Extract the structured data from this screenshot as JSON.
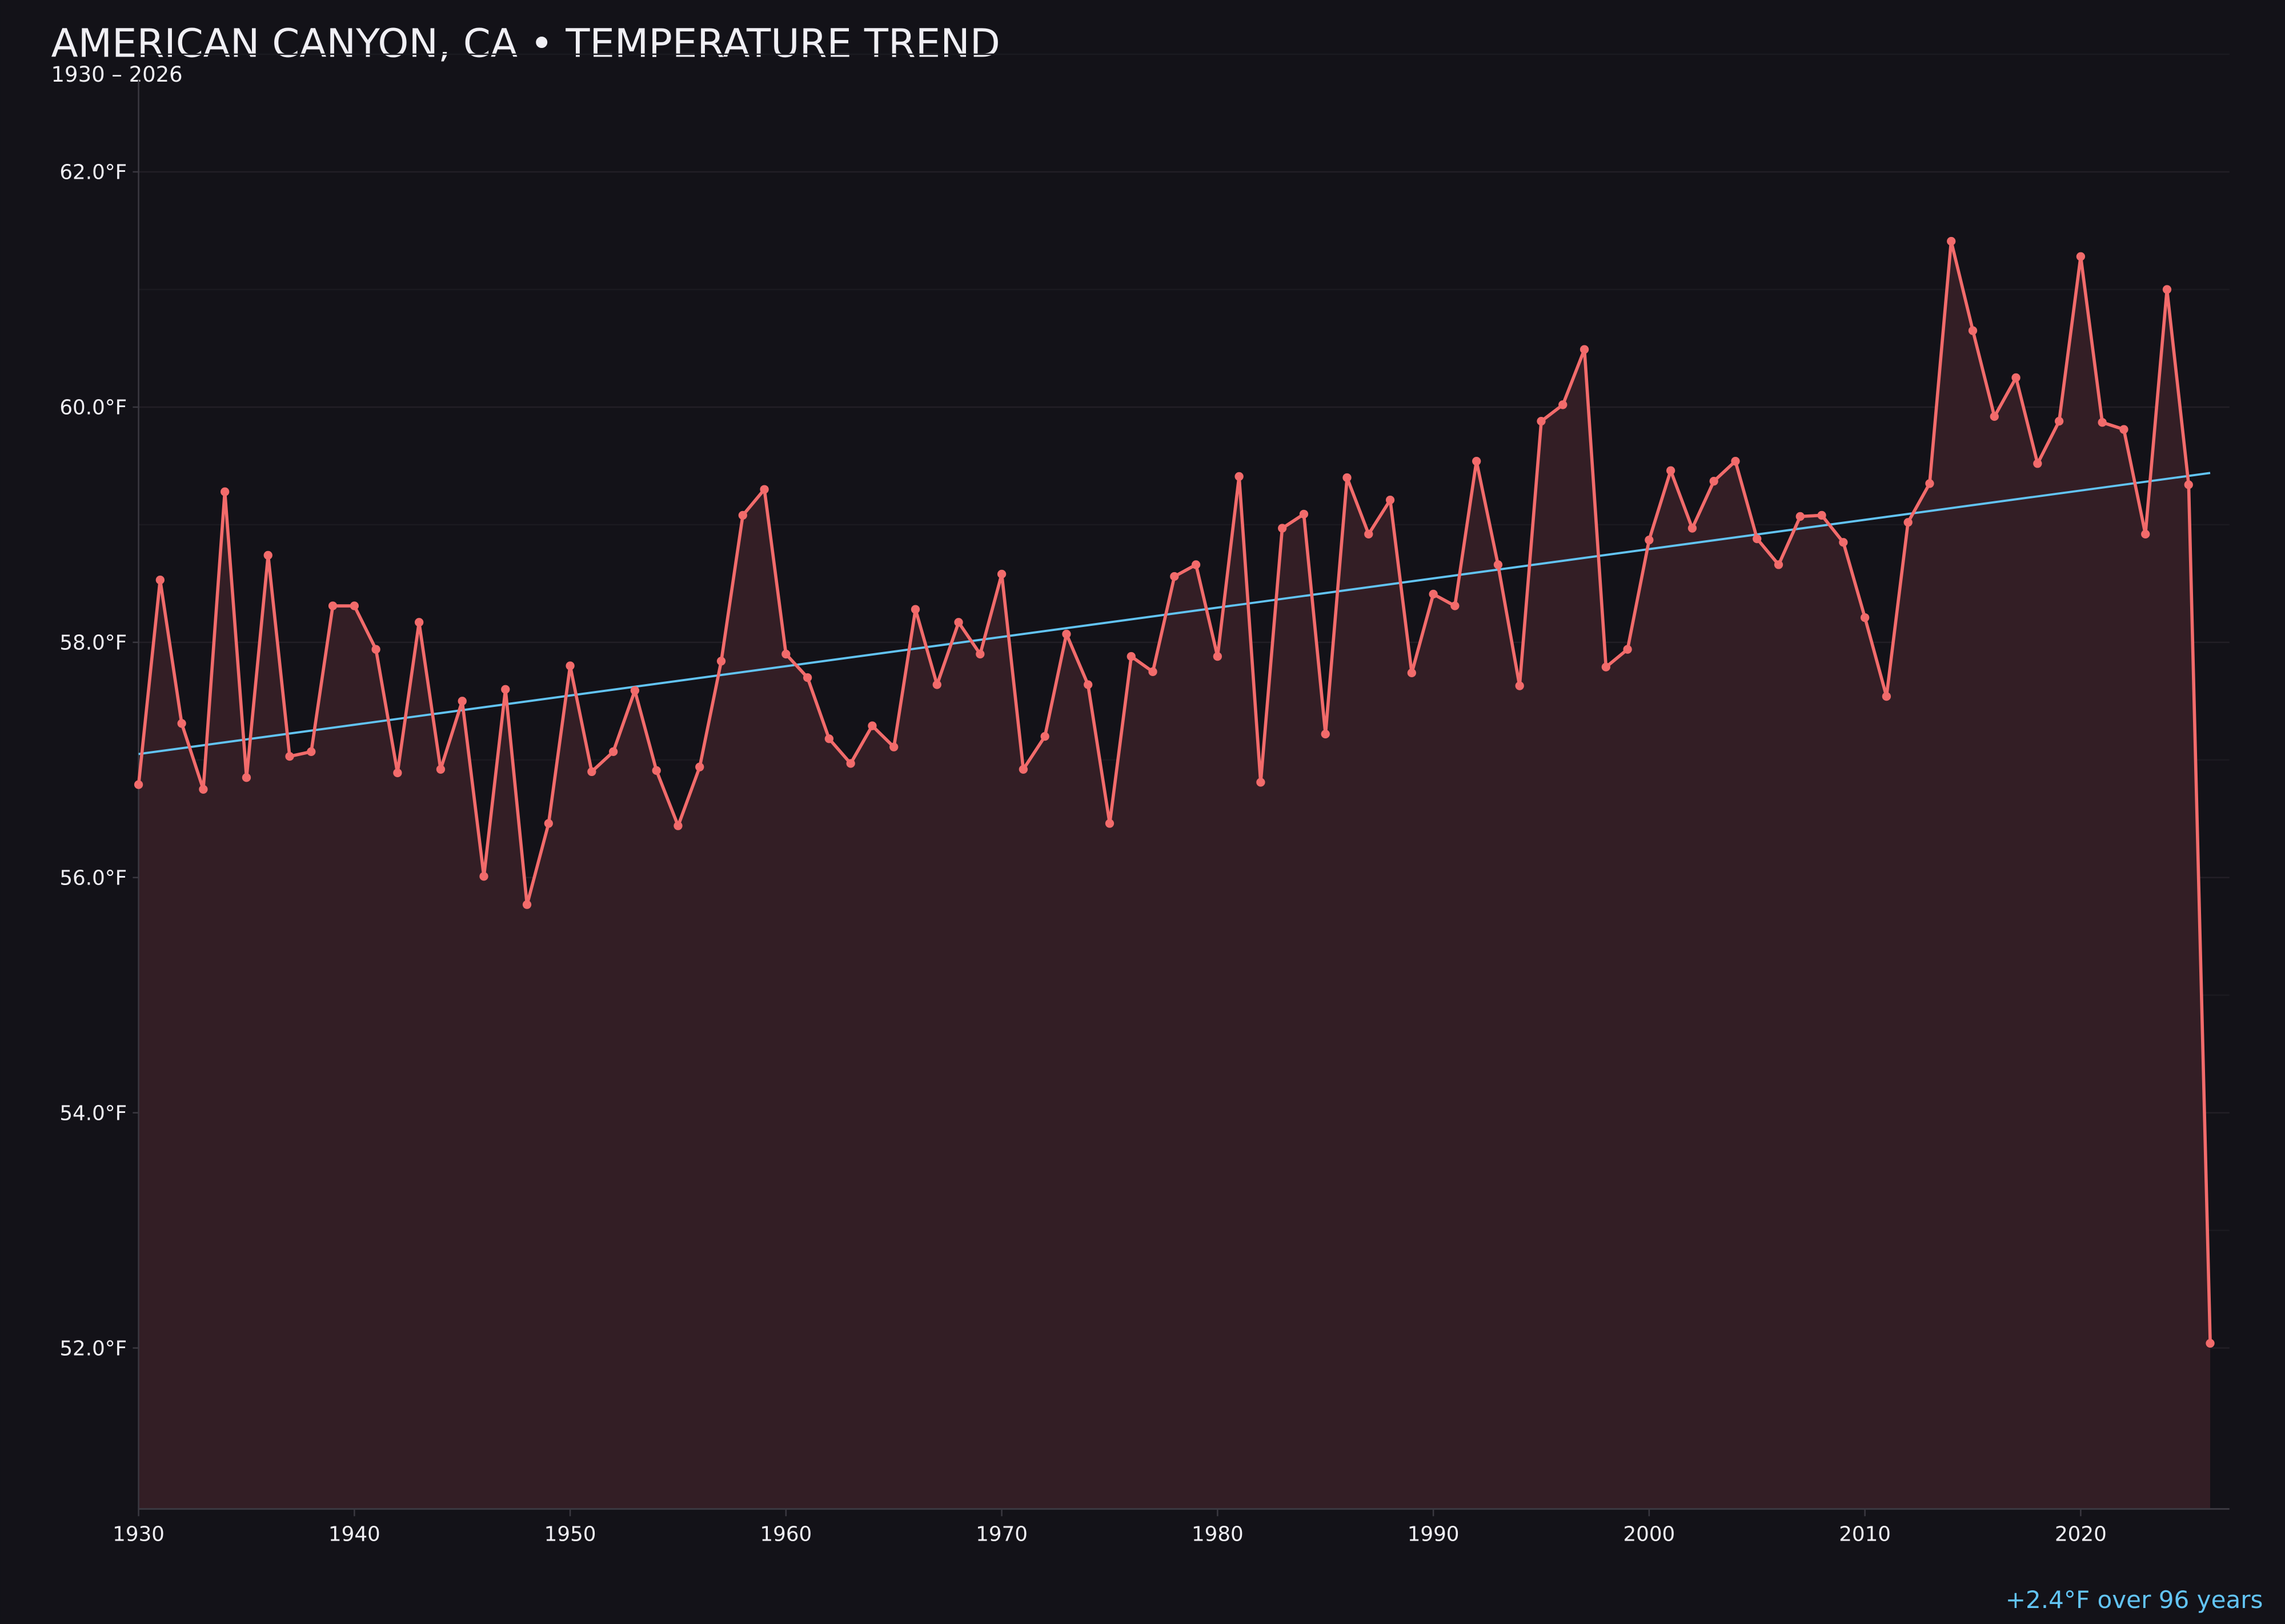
{
  "chart_data": {
    "type": "line",
    "title": "AMERICAN CANYON, CA • TEMPERATURE TREND",
    "subtitle": "1930 – 2026",
    "xlabel": "",
    "ylabel": "",
    "xlim": [
      1930,
      2027
    ],
    "ylim": [
      50.63,
      62.78
    ],
    "x_ticks": [
      1930,
      1940,
      1950,
      1960,
      1970,
      1980,
      1990,
      2000,
      2010,
      2020
    ],
    "x_tick_labels": [
      "1930",
      "1940",
      "1950",
      "1960",
      "1970",
      "1980",
      "1990",
      "2000",
      "2010",
      "2020"
    ],
    "y_ticks": [
      52,
      54,
      56,
      58,
      60,
      62
    ],
    "y_tick_labels": [
      "52.0°F",
      "54.0°F",
      "56.0°F",
      "58.0°F",
      "60.0°F",
      "62.0°F"
    ],
    "grid": "horizontal",
    "x": [
      1930,
      1931,
      1932,
      1933,
      1934,
      1935,
      1936,
      1937,
      1938,
      1939,
      1940,
      1941,
      1942,
      1943,
      1944,
      1945,
      1946,
      1947,
      1948,
      1949,
      1950,
      1951,
      1952,
      1953,
      1954,
      1955,
      1956,
      1957,
      1958,
      1959,
      1960,
      1961,
      1962,
      1963,
      1964,
      1965,
      1966,
      1967,
      1968,
      1969,
      1970,
      1971,
      1972,
      1973,
      1974,
      1975,
      1976,
      1977,
      1978,
      1979,
      1980,
      1981,
      1982,
      1983,
      1984,
      1985,
      1986,
      1987,
      1988,
      1989,
      1990,
      1991,
      1992,
      1993,
      1994,
      1995,
      1996,
      1997,
      1998,
      1999,
      2000,
      2001,
      2002,
      2003,
      2004,
      2005,
      2006,
      2007,
      2008,
      2009,
      2010,
      2011,
      2012,
      2013,
      2014,
      2015,
      2016,
      2017,
      2018,
      2019,
      2020,
      2021,
      2022,
      2023,
      2024,
      2025,
      2026
    ],
    "series": [
      {
        "values": [
          56.79,
          58.53,
          57.31,
          56.75,
          59.28,
          56.85,
          58.74,
          57.03,
          57.07,
          58.31,
          58.31,
          57.94,
          56.89,
          58.17,
          56.92,
          57.5,
          56.01,
          57.6,
          55.77,
          56.46,
          57.8,
          56.9,
          57.07,
          57.59,
          56.91,
          56.44,
          56.94,
          57.84,
          59.08,
          59.3,
          57.9,
          57.7,
          57.18,
          56.97,
          57.29,
          57.11,
          58.28,
          57.64,
          58.17,
          57.9,
          58.58,
          56.92,
          57.2,
          58.07,
          57.64,
          56.46,
          57.88,
          57.75,
          58.56,
          58.66,
          57.88,
          59.41,
          56.81,
          58.97,
          59.09,
          57.22,
          59.4,
          58.92,
          59.21,
          57.74,
          58.41,
          58.31,
          59.54,
          58.66,
          57.63,
          59.88,
          60.02,
          60.49,
          57.79,
          57.94,
          58.87,
          59.46,
          58.97,
          59.37,
          59.54,
          58.88,
          58.66,
          59.07,
          59.08,
          58.85,
          58.21,
          57.54,
          59.02,
          59.35,
          61.41,
          60.65,
          59.92,
          60.25,
          59.52,
          59.88,
          61.28,
          59.87,
          59.81,
          58.92,
          61.0,
          59.34,
          52.04
        ],
        "color": "#f26b6b"
      }
    ],
    "trend": {
      "x": [
        1930,
        2026
      ],
      "y": [
        57.05,
        59.44
      ],
      "color": "#62c4f5"
    },
    "annotation": "+2.4°F over 96 years",
    "colors": {
      "background": "#131218",
      "fill": "#331e25",
      "grid": "#221f26",
      "axis": "#3a3840",
      "text": "#f0eff4",
      "annotation": "#62c4f5"
    }
  }
}
